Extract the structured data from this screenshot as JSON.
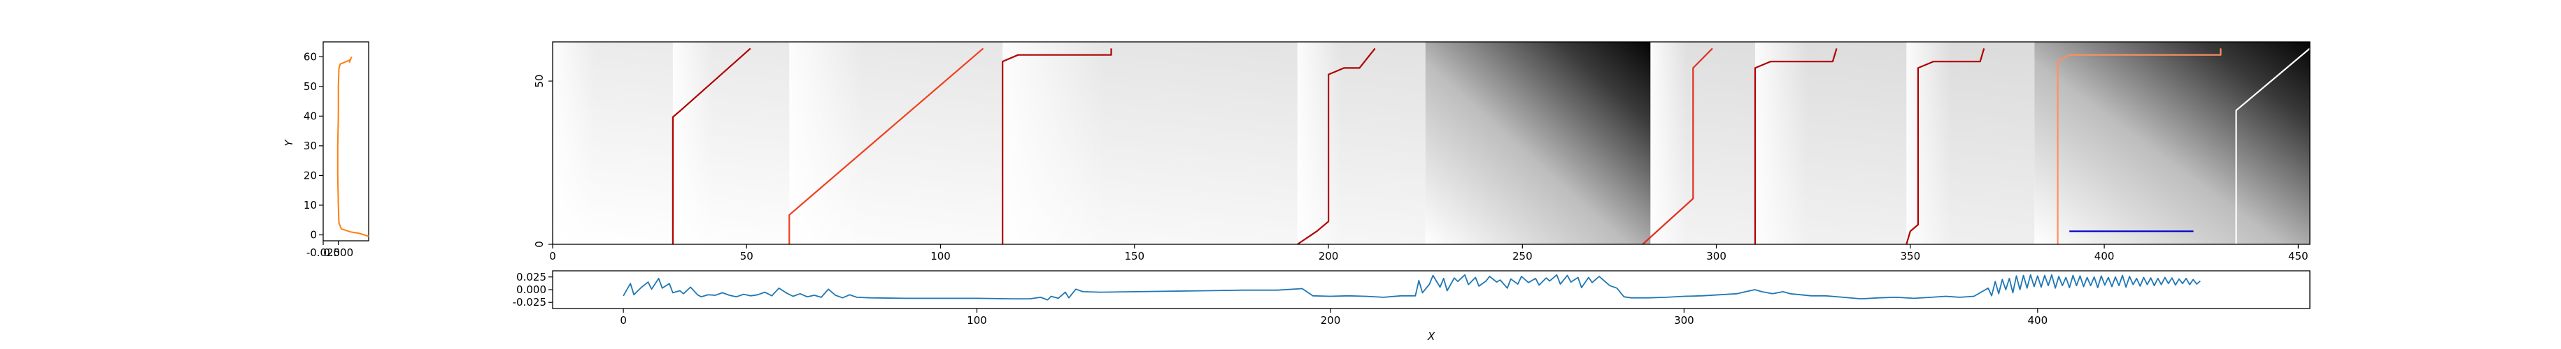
{
  "chart_data": [
    {
      "panel": "left-profile",
      "type": "line",
      "ylabel": "Y",
      "xlim": [
        -0.025,
        0.05
      ],
      "ylim": [
        -2,
        65
      ],
      "x_ticks": [
        "-0.025",
        "0.000"
      ],
      "y_ticks": [
        "0",
        "10",
        "20",
        "30",
        "40",
        "50",
        "60"
      ],
      "series": [
        {
          "color": "#ff7f0e",
          "points": [
            [
              0.05,
              -0.5
            ],
            [
              0.035,
              0.5
            ],
            [
              0.02,
              1.0
            ],
            [
              0.005,
              2.0
            ],
            [
              0.001,
              4
            ],
            [
              0.0,
              10
            ],
            [
              -0.001,
              20
            ],
            [
              -0.001,
              30
            ],
            [
              0.0,
              40
            ],
            [
              0.0,
              50
            ],
            [
              0.001,
              56
            ],
            [
              0.003,
              57.5
            ],
            [
              0.02,
              59
            ],
            [
              0.022,
              60
            ],
            [
              0.018,
              58
            ]
          ]
        }
      ]
    },
    {
      "panel": "main-heatmap",
      "type": "heatmap",
      "xlim": [
        0,
        453
      ],
      "ylim": [
        0,
        62
      ],
      "x_ticks": [
        "0",
        "50",
        "100",
        "150",
        "200",
        "250",
        "300",
        "350",
        "400",
        "450"
      ],
      "y_ticks": [
        "0",
        "50"
      ],
      "dark_blocks": [
        {
          "x0": 225,
          "x1": 283,
          "dark_corner": "top-right"
        },
        {
          "x0": 382,
          "x1": 453,
          "dark_corner": "top-right"
        }
      ],
      "paths": [
        {
          "color": "#b00000",
          "points": [
            [
              31,
              0
            ],
            [
              31,
              39
            ],
            [
              33,
              41
            ],
            [
              51,
              60
            ]
          ]
        },
        {
          "color": "#f04020",
          "points": [
            [
              61,
              0
            ],
            [
              61,
              9
            ],
            [
              111,
              60
            ]
          ]
        },
        {
          "color": "#b00000",
          "points": [
            [
              116,
              0
            ],
            [
              116,
              56
            ],
            [
              120,
              58
            ],
            [
              144,
              58
            ],
            [
              144,
              60
            ]
          ]
        },
        {
          "color": "#b00000",
          "points": [
            [
              192,
              0
            ],
            [
              197,
              4
            ],
            [
              200,
              7
            ],
            [
              200,
              52
            ],
            [
              204,
              54
            ],
            [
              208,
              54
            ],
            [
              212,
              60
            ]
          ]
        },
        {
          "color": "#e03020",
          "points": [
            [
              281,
              0
            ],
            [
              294,
              14
            ],
            [
              294,
              54
            ],
            [
              299,
              60
            ]
          ]
        },
        {
          "color": "#b00000",
          "points": [
            [
              310,
              0
            ],
            [
              310,
              54
            ],
            [
              314,
              56
            ],
            [
              330,
              56
            ],
            [
              331,
              60
            ]
          ]
        },
        {
          "color": "#b00000",
          "points": [
            [
              349,
              0
            ],
            [
              350,
              4
            ],
            [
              352,
              6
            ],
            [
              352,
              54
            ],
            [
              356,
              56
            ],
            [
              368,
              56
            ],
            [
              369,
              60
            ]
          ]
        },
        {
          "color": "#ff9060",
          "points": [
            [
              388,
              0
            ],
            [
              388,
              56
            ],
            [
              391,
              58
            ],
            [
              430,
              58
            ],
            [
              430,
              60
            ]
          ]
        },
        {
          "color": "#ffffff",
          "points": [
            [
              434,
              0
            ],
            [
              434,
              41
            ],
            [
              453,
              60
            ]
          ]
        },
        {
          "color": "#0000cc",
          "points": [
            [
              391,
              4
            ],
            [
              423,
              4
            ]
          ]
        }
      ]
    },
    {
      "panel": "bottom-signal",
      "type": "line",
      "xlabel": "X",
      "xlim": [
        -20,
        477
      ],
      "ylim": [
        -0.037,
        0.037
      ],
      "x_ticks": [
        "0",
        "100",
        "200",
        "300",
        "400"
      ],
      "y_ticks": [
        "0.025",
        "0.000",
        "-0.025"
      ],
      "series": [
        {
          "color": "#1f77b4",
          "points": [
            [
              0,
              -0.012
            ],
            [
              2,
              0.012
            ],
            [
              3,
              -0.01
            ],
            [
              5,
              0.004
            ],
            [
              7,
              0.015
            ],
            [
              8,
              0.001
            ],
            [
              10,
              0.022
            ],
            [
              11,
              0.003
            ],
            [
              13,
              0.012
            ],
            [
              14,
              -0.006
            ],
            [
              16,
              -0.002
            ],
            [
              17,
              -0.008
            ],
            [
              19,
              0.005
            ],
            [
              21,
              -0.01
            ],
            [
              22,
              -0.014
            ],
            [
              24,
              -0.01
            ],
            [
              26,
              -0.011
            ],
            [
              28,
              -0.006
            ],
            [
              30,
              -0.011
            ],
            [
              32,
              -0.014
            ],
            [
              34,
              -0.009
            ],
            [
              36,
              -0.012
            ],
            [
              38,
              -0.01
            ],
            [
              40,
              -0.005
            ],
            [
              42,
              -0.012
            ],
            [
              44,
              0.003
            ],
            [
              46,
              -0.006
            ],
            [
              48,
              -0.013
            ],
            [
              50,
              -0.008
            ],
            [
              52,
              -0.014
            ],
            [
              54,
              -0.011
            ],
            [
              56,
              -0.015
            ],
            [
              58,
              0.001
            ],
            [
              60,
              -0.011
            ],
            [
              62,
              -0.016
            ],
            [
              64,
              -0.01
            ],
            [
              66,
              -0.015
            ],
            [
              70,
              -0.016
            ],
            [
              80,
              -0.017
            ],
            [
              90,
              -0.017
            ],
            [
              100,
              -0.017
            ],
            [
              110,
              -0.018
            ],
            [
              115,
              -0.018
            ],
            [
              118,
              -0.015
            ],
            [
              120,
              -0.02
            ],
            [
              121,
              -0.013
            ],
            [
              123,
              -0.017
            ],
            [
              125,
              -0.005
            ],
            [
              126,
              -0.016
            ],
            [
              128,
              0.001
            ],
            [
              130,
              -0.004
            ],
            [
              135,
              -0.005
            ],
            [
              145,
              -0.004
            ],
            [
              155,
              -0.003
            ],
            [
              165,
              -0.002
            ],
            [
              175,
              -0.001
            ],
            [
              185,
              -0.001
            ],
            [
              192,
              0.002
            ],
            [
              195,
              -0.012
            ],
            [
              200,
              -0.013
            ],
            [
              205,
              -0.012
            ],
            [
              210,
              -0.013
            ],
            [
              215,
              -0.015
            ],
            [
              220,
              -0.012
            ],
            [
              224,
              -0.012
            ],
            [
              225,
              0.018
            ],
            [
              226,
              -0.006
            ],
            [
              228,
              0.011
            ],
            [
              229,
              0.028
            ],
            [
              231,
              0.005
            ],
            [
              232,
              0.022
            ],
            [
              233,
              -0.002
            ],
            [
              235,
              0.023
            ],
            [
              236,
              0.016
            ],
            [
              238,
              0.029
            ],
            [
              239,
              0.01
            ],
            [
              241,
              0.024
            ],
            [
              242,
              0.007
            ],
            [
              244,
              0.017
            ],
            [
              245,
              0.026
            ],
            [
              247,
              0.015
            ],
            [
              248,
              0.019
            ],
            [
              250,
              0.003
            ],
            [
              251,
              0.021
            ],
            [
              253,
              0.011
            ],
            [
              254,
              0.026
            ],
            [
              256,
              0.014
            ],
            [
              258,
              0.022
            ],
            [
              259,
              0.009
            ],
            [
              261,
              0.023
            ],
            [
              262,
              0.017
            ],
            [
              264,
              0.029
            ],
            [
              265,
              0.011
            ],
            [
              267,
              0.028
            ],
            [
              268,
              0.015
            ],
            [
              270,
              0.024
            ],
            [
              271,
              0.004
            ],
            [
              273,
              0.024
            ],
            [
              274,
              0.014
            ],
            [
              276,
              0.026
            ],
            [
              277,
              0.02
            ],
            [
              279,
              0.008
            ],
            [
              281,
              0.003
            ],
            [
              283,
              -0.014
            ],
            [
              285,
              -0.016
            ],
            [
              290,
              -0.016
            ],
            [
              295,
              -0.015
            ],
            [
              300,
              -0.013
            ],
            [
              305,
              -0.012
            ],
            [
              310,
              -0.01
            ],
            [
              315,
              -0.008
            ],
            [
              318,
              -0.003
            ],
            [
              320,
              0.0
            ],
            [
              322,
              -0.004
            ],
            [
              325,
              -0.008
            ],
            [
              328,
              -0.004
            ],
            [
              330,
              -0.008
            ],
            [
              333,
              -0.01
            ],
            [
              336,
              -0.012
            ],
            [
              340,
              -0.012
            ],
            [
              345,
              -0.015
            ],
            [
              350,
              -0.018
            ],
            [
              355,
              -0.016
            ],
            [
              360,
              -0.015
            ],
            [
              365,
              -0.017
            ],
            [
              370,
              -0.015
            ],
            [
              374,
              -0.013
            ],
            [
              378,
              -0.015
            ],
            [
              382,
              -0.013
            ],
            [
              384,
              -0.005
            ],
            [
              386,
              0.003
            ],
            [
              387,
              -0.012
            ],
            [
              388,
              0.016
            ],
            [
              389,
              -0.008
            ],
            [
              390,
              0.02
            ],
            [
              391,
              0.0
            ],
            [
              392,
              0.022
            ],
            [
              393,
              -0.006
            ],
            [
              394,
              0.027
            ],
            [
              395,
              0.0
            ],
            [
              396,
              0.028
            ],
            [
              397,
              0.003
            ],
            [
              398,
              0.029
            ],
            [
              399,
              0.006
            ],
            [
              400,
              0.027
            ],
            [
              401,
              0.005
            ],
            [
              402,
              0.028
            ],
            [
              403,
              0.008
            ],
            [
              404,
              0.029
            ],
            [
              405,
              0.003
            ],
            [
              406,
              0.026
            ],
            [
              407,
              0.008
            ],
            [
              408,
              0.024
            ],
            [
              409,
              0.004
            ],
            [
              410,
              0.028
            ],
            [
              411,
              0.008
            ],
            [
              412,
              0.027
            ],
            [
              413,
              0.006
            ],
            [
              414,
              0.024
            ],
            [
              415,
              0.008
            ],
            [
              416,
              0.025
            ],
            [
              417,
              0.004
            ],
            [
              418,
              0.027
            ],
            [
              419,
              0.009
            ],
            [
              420,
              0.024
            ],
            [
              421,
              0.006
            ],
            [
              422,
              0.025
            ],
            [
              423,
              0.008
            ],
            [
              424,
              0.028
            ],
            [
              425,
              0.005
            ],
            [
              426,
              0.026
            ],
            [
              427,
              0.01
            ],
            [
              428,
              0.022
            ],
            [
              429,
              0.007
            ],
            [
              430,
              0.024
            ],
            [
              431,
              0.01
            ],
            [
              432,
              0.023
            ],
            [
              433,
              0.008
            ],
            [
              434,
              0.022
            ],
            [
              435,
              0.01
            ],
            [
              436,
              0.024
            ],
            [
              437,
              0.012
            ],
            [
              438,
              0.023
            ],
            [
              439,
              0.009
            ],
            [
              440,
              0.021
            ],
            [
              441,
              0.012
            ],
            [
              442,
              0.022
            ],
            [
              443,
              0.01
            ],
            [
              444,
              0.02
            ],
            [
              445,
              0.011
            ],
            [
              446,
              0.017
            ]
          ]
        }
      ]
    }
  ]
}
